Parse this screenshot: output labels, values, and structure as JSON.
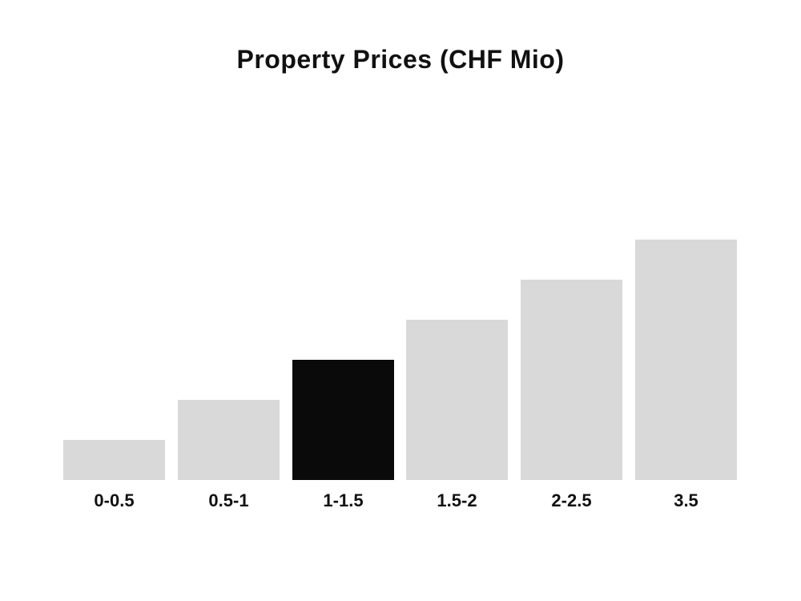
{
  "chart_data": {
    "type": "bar",
    "title": "Property Prices (CHF Mio)",
    "categories": [
      "0-0.5",
      "0.5-1",
      "1-1.5",
      "1.5-2",
      "2-2.5",
      "3.5"
    ],
    "values": [
      1,
      2,
      3,
      4,
      5,
      6
    ],
    "value_note": "relative bar heights estimated from pixels; no y-axis shown",
    "xlabel": "",
    "ylabel": "",
    "grid": false,
    "legend": false,
    "highlighted_category": "1-1.5",
    "highlight_index": 2,
    "colors": {
      "bar": "#d9d9d9",
      "highlight": "#0a0a0a",
      "text": "#111111",
      "background": "#ffffff"
    }
  }
}
